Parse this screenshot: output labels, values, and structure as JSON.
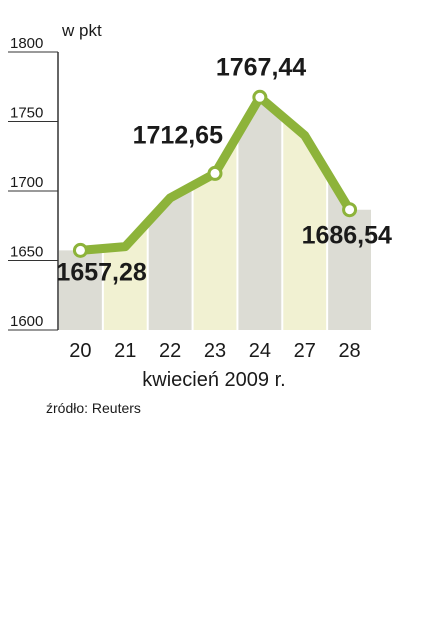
{
  "chart_data": {
    "type": "line",
    "y_unit_label": "w pkt",
    "x_axis_label": "kwiecień 2009 r.",
    "source": "źródło: Reuters",
    "categories": [
      "20",
      "21",
      "22",
      "23",
      "24",
      "27",
      "28"
    ],
    "values": [
      1657.28,
      1660,
      1695,
      1712.65,
      1767.44,
      1740,
      1686.54
    ],
    "value_labels": [
      "1657,28",
      null,
      null,
      "1712,65",
      "1767,44",
      null,
      "1686,54"
    ],
    "color": "#8db33a",
    "band_colors": [
      "#dcdcd4",
      "#f1f1d2"
    ],
    "ylim": [
      1600,
      1800
    ],
    "yticks": [
      1600,
      1650,
      1700,
      1750,
      1800
    ]
  }
}
